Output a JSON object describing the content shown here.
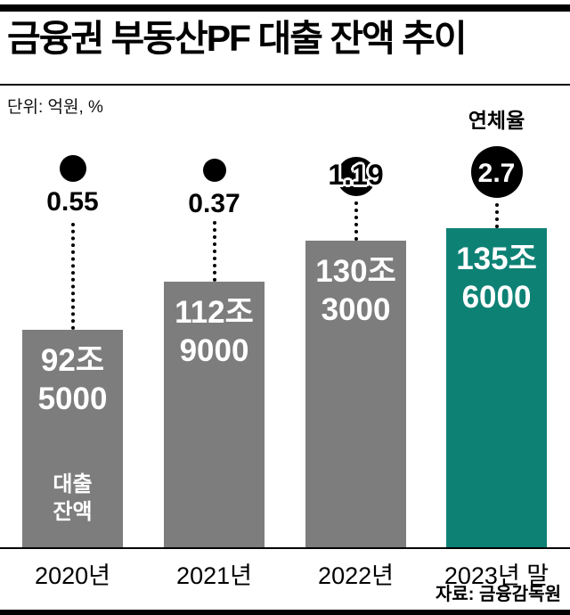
{
  "header": {
    "title": "금융권 부동산PF 대출 잔액 추이",
    "unit_label": "단위: 억원, %",
    "rate_label": "연체율"
  },
  "chart_data": {
    "type": "bar",
    "title": "금융권 부동산PF 대출 잔액 추이",
    "categories": [
      "2020년",
      "2021년",
      "2022년",
      "2023년 말"
    ],
    "series": [
      {
        "name": "대출 잔액 (조원)",
        "values": [
          92.5,
          112.9,
          130.3,
          135.6
        ]
      },
      {
        "name": "연체율 (%)",
        "values": [
          0.55,
          0.37,
          1.19,
          2.7
        ]
      }
    ],
    "bar_value_labels": [
      [
        "92조",
        "5000"
      ],
      [
        "112조",
        "9000"
      ],
      [
        "130조",
        "3000"
      ],
      [
        "135조",
        "6000"
      ]
    ],
    "rate_labels": [
      "0.55",
      "0.37",
      "1.19",
      "2.7"
    ],
    "caption_lines": [
      "대출",
      "잔액"
    ],
    "ylim": [
      0,
      140
    ],
    "grid": false,
    "legend_position": "none",
    "bar_color": "#7d7d7d",
    "highlight_color": "#0e8175",
    "circle_color": "#000000"
  },
  "footer": {
    "source": "자료: 금융감독원"
  }
}
